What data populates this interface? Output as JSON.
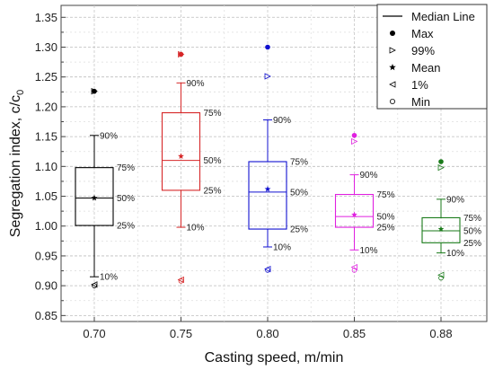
{
  "chart_data": {
    "type": "box",
    "xlabel": "Casting speed, m/min",
    "ylabel": "Segregation index, c/c",
    "ylabel_sub": "0",
    "ylim": [
      0.84,
      1.37
    ],
    "yticks": [
      "0.85",
      "0.90",
      "0.95",
      "1.00",
      "1.05",
      "1.10",
      "1.15",
      "1.20",
      "1.25",
      "1.30",
      "1.35"
    ],
    "grid": true,
    "legend_position": "top-right",
    "legend": {
      "median": "Median Line",
      "max": "Max",
      "p99": "99%",
      "mean": "Mean",
      "p1": "1%",
      "min": "Min"
    },
    "percentile_labels": {
      "p90": "90%",
      "p75": "75%",
      "p50": "50%",
      "p25": "25%",
      "p10": "10%"
    },
    "boxes": [
      {
        "category": "0.70",
        "color": "#000000",
        "min": 0.9,
        "p1": 0.902,
        "p10": 0.915,
        "p25": 1.001,
        "median": 1.047,
        "mean": 1.047,
        "p75": 1.098,
        "p90": 1.152,
        "p99": 1.226,
        "max": 1.226
      },
      {
        "category": "0.75",
        "color": "#d62728",
        "min": 0.908,
        "p1": 0.91,
        "p10": 0.998,
        "p25": 1.06,
        "median": 1.11,
        "mean": 1.117,
        "p75": 1.19,
        "p90": 1.24,
        "p99": 1.288,
        "max": 1.288
      },
      {
        "category": "0.80",
        "color": "#1010d0",
        "min": 0.926,
        "p1": 0.928,
        "p10": 0.965,
        "p25": 0.995,
        "median": 1.057,
        "mean": 1.062,
        "p75": 1.108,
        "p90": 1.178,
        "p99": 1.251,
        "max": 1.3
      },
      {
        "category": "0.85",
        "color": "#e020e0",
        "min": 0.926,
        "p1": 0.931,
        "p10": 0.96,
        "p25": 0.998,
        "median": 1.016,
        "mean": 1.019,
        "p75": 1.053,
        "p90": 1.086,
        "p99": 1.142,
        "max": 1.152
      },
      {
        "category": "0.88",
        "color": "#1a7a1a",
        "min": 0.913,
        "p1": 0.918,
        "p10": 0.955,
        "p25": 0.972,
        "median": 0.992,
        "mean": 0.995,
        "p75": 1.014,
        "p90": 1.045,
        "p99": 1.098,
        "max": 1.108
      }
    ]
  }
}
